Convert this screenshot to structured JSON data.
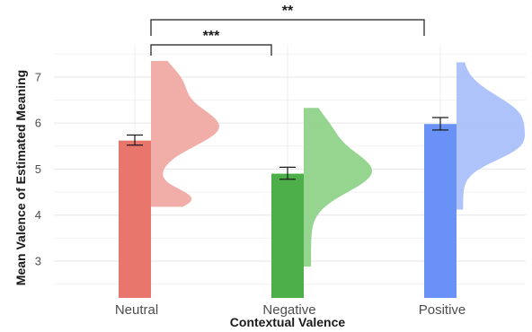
{
  "chart_data": {
    "type": "bar",
    "xlabel": "Contextual Valence",
    "ylabel": "Mean Valence of Estimated Meaning",
    "ylim": [
      2.2,
      7.7
    ],
    "yticks": [
      3,
      4,
      5,
      6,
      7
    ],
    "categories": [
      "Neutral",
      "Negative",
      "Positive"
    ],
    "values": [
      5.62,
      4.9,
      5.98
    ],
    "error_low": [
      5.52,
      4.78,
      5.85
    ],
    "error_high": [
      5.74,
      5.04,
      6.12
    ],
    "colors": [
      "#e8766d",
      "#4daf4a",
      "#6a91f5"
    ],
    "violin_colors": [
      "#f0aaa4",
      "#8fd38a",
      "#a9c0f9"
    ],
    "distributions": [
      {
        "range": [
          4.18,
          7.35
        ],
        "peak": 5.92,
        "min_density_at": 4.8
      },
      {
        "range": [
          2.88,
          6.33
        ],
        "peak": 4.95
      },
      {
        "range": [
          4.12,
          7.32
        ],
        "peak": 6.15,
        "secondary_peak": 5.45
      }
    ],
    "grid": true,
    "legend": "none",
    "annotations": [
      {
        "text": "**",
        "from": "Neutral",
        "to": "Positive"
      },
      {
        "text": "***",
        "from": "Neutral",
        "to": "Negative"
      }
    ]
  }
}
